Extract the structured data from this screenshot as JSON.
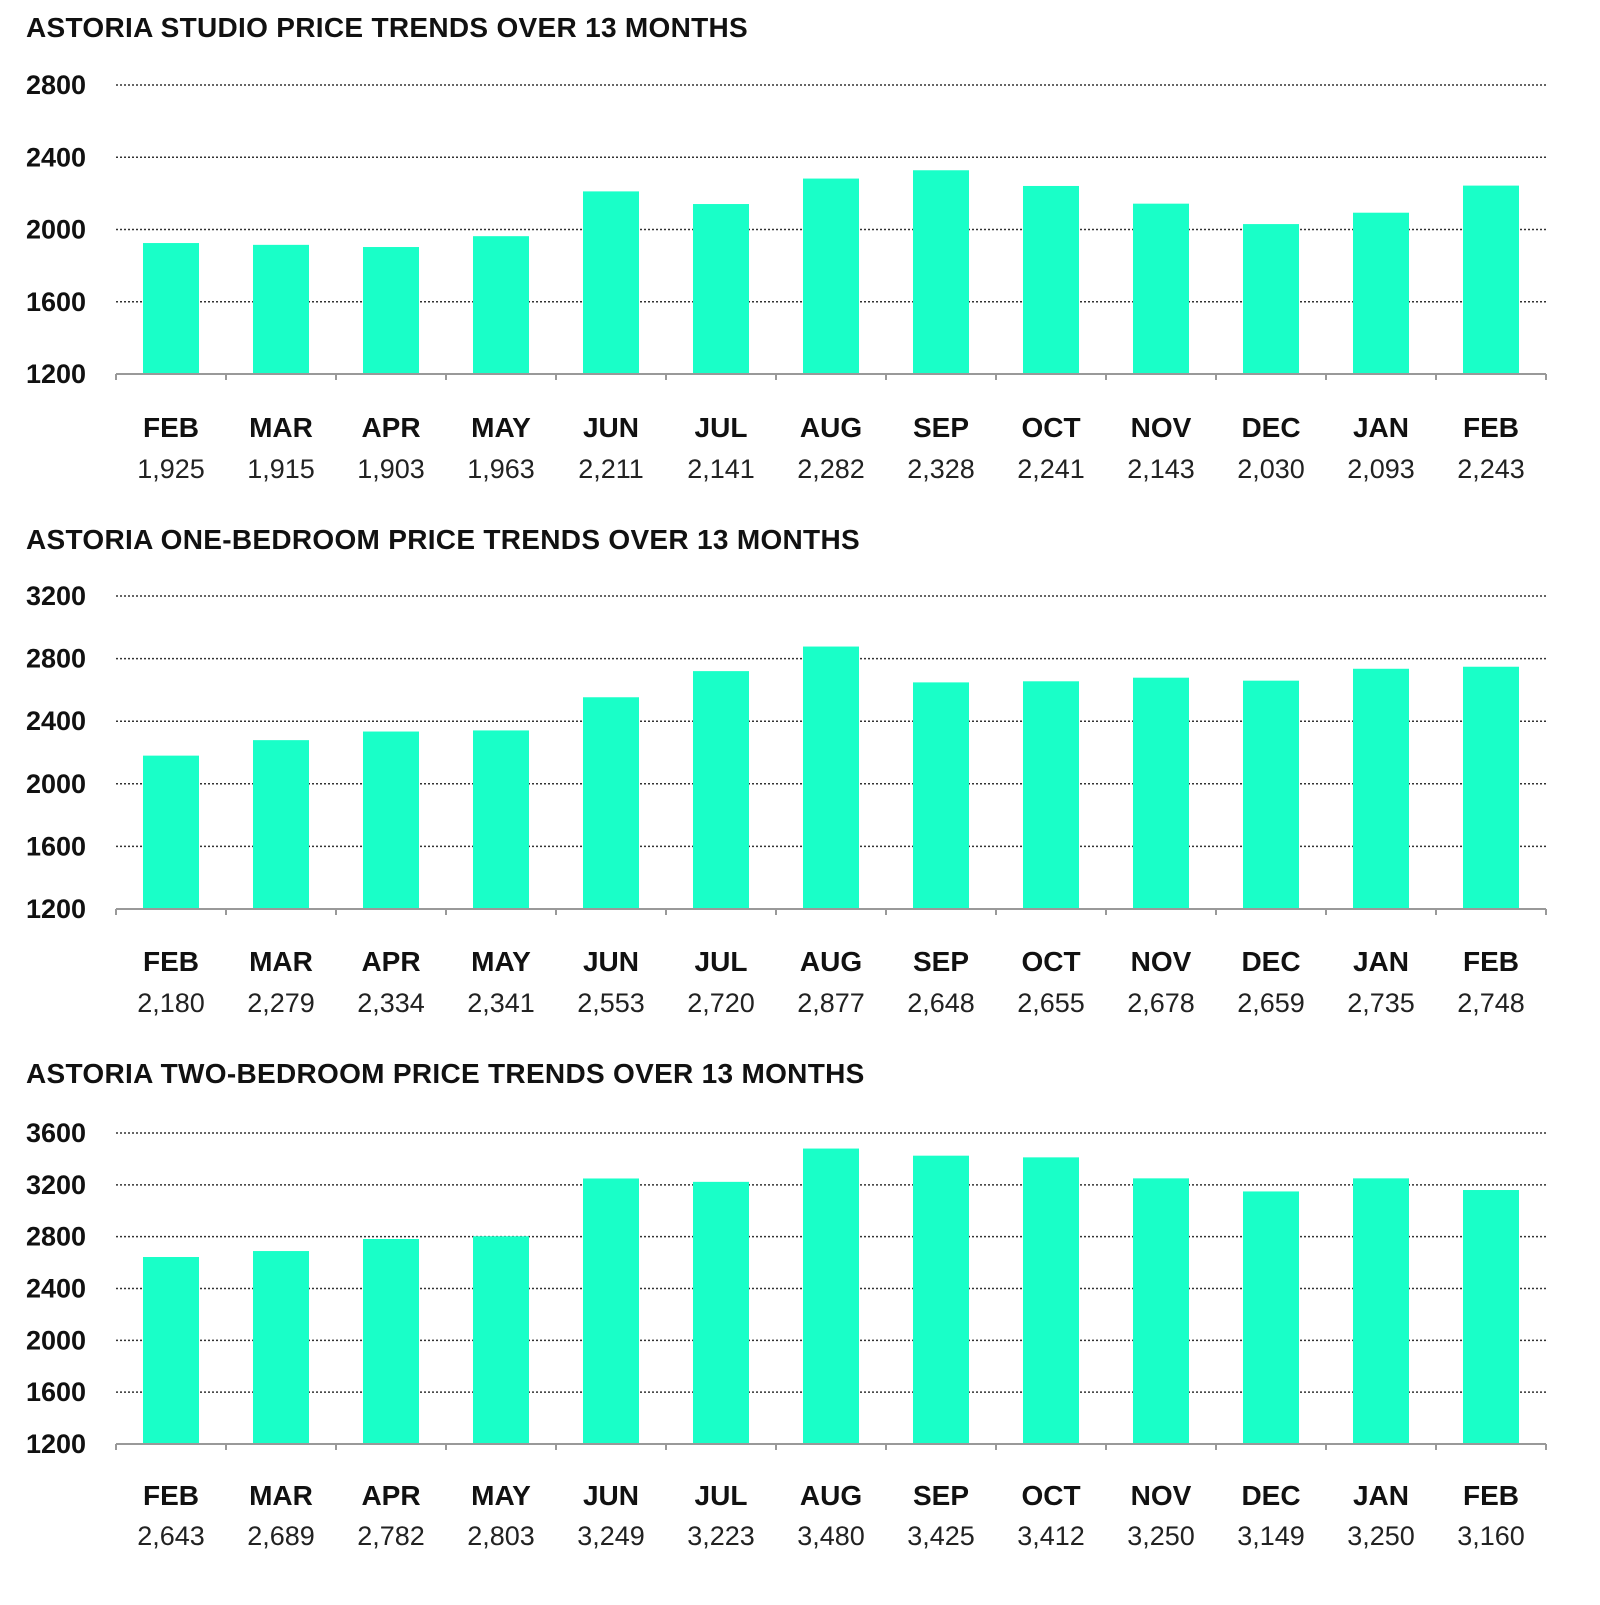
{
  "colors": {
    "bar": "#19FFC8",
    "grid": "#333333",
    "axis": "#999999",
    "text": "#111111"
  },
  "chart_data": [
    {
      "type": "bar",
      "title": "ASTORIA STUDIO PRICE TRENDS OVER 13 MONTHS",
      "categories": [
        "FEB",
        "MAR",
        "APR",
        "MAY",
        "JUN",
        "JUL",
        "AUG",
        "SEP",
        "OCT",
        "NOV",
        "DEC",
        "JAN",
        "FEB"
      ],
      "values": [
        1925,
        1915,
        1903,
        1963,
        2211,
        2141,
        2282,
        2328,
        2241,
        2143,
        2030,
        2093,
        2243
      ],
      "value_labels": [
        "1,925",
        "1,915",
        "1,903",
        "1,963",
        "2,211",
        "2,141",
        "2,282",
        "2,328",
        "2,241",
        "2,143",
        "2,030",
        "2,093",
        "2,243"
      ],
      "yticks": [
        "1200",
        "1600",
        "2000",
        "2400",
        "2800"
      ],
      "ylim": [
        1200,
        2800
      ],
      "grid": true
    },
    {
      "type": "bar",
      "title": "ASTORIA ONE-BEDROOM PRICE TRENDS OVER 13 MONTHS",
      "categories": [
        "FEB",
        "MAR",
        "APR",
        "MAY",
        "JUN",
        "JUL",
        "AUG",
        "SEP",
        "OCT",
        "NOV",
        "DEC",
        "JAN",
        "FEB"
      ],
      "values": [
        2180,
        2279,
        2334,
        2341,
        2553,
        2720,
        2877,
        2648,
        2655,
        2678,
        2659,
        2735,
        2748
      ],
      "value_labels": [
        "2,180",
        "2,279",
        "2,334",
        "2,341",
        "2,553",
        "2,720",
        "2,877",
        "2,648",
        "2,655",
        "2,678",
        "2,659",
        "2,735",
        "2,748"
      ],
      "yticks": [
        "1200",
        "1600",
        "2000",
        "2400",
        "2800",
        "3200"
      ],
      "ylim": [
        1200,
        3200
      ],
      "grid": true
    },
    {
      "type": "bar",
      "title": "ASTORIA TWO-BEDROOM PRICE TRENDS OVER 13 MONTHS",
      "categories": [
        "FEB",
        "MAR",
        "APR",
        "MAY",
        "JUN",
        "JUL",
        "AUG",
        "SEP",
        "OCT",
        "NOV",
        "DEC",
        "JAN",
        "FEB"
      ],
      "values": [
        2643,
        2689,
        2782,
        2803,
        3249,
        3223,
        3480,
        3425,
        3412,
        3250,
        3149,
        3250,
        3160
      ],
      "value_labels": [
        "2,643",
        "2,689",
        "2,782",
        "2,803",
        "3,249",
        "3,223",
        "3,480",
        "3,425",
        "3,412",
        "3,250",
        "3,149",
        "3,250",
        "3,160"
      ],
      "yticks": [
        "1200",
        "1600",
        "2000",
        "2400",
        "2800",
        "3200",
        "3600"
      ],
      "ylim": [
        1200,
        3600
      ],
      "grid": true
    }
  ]
}
